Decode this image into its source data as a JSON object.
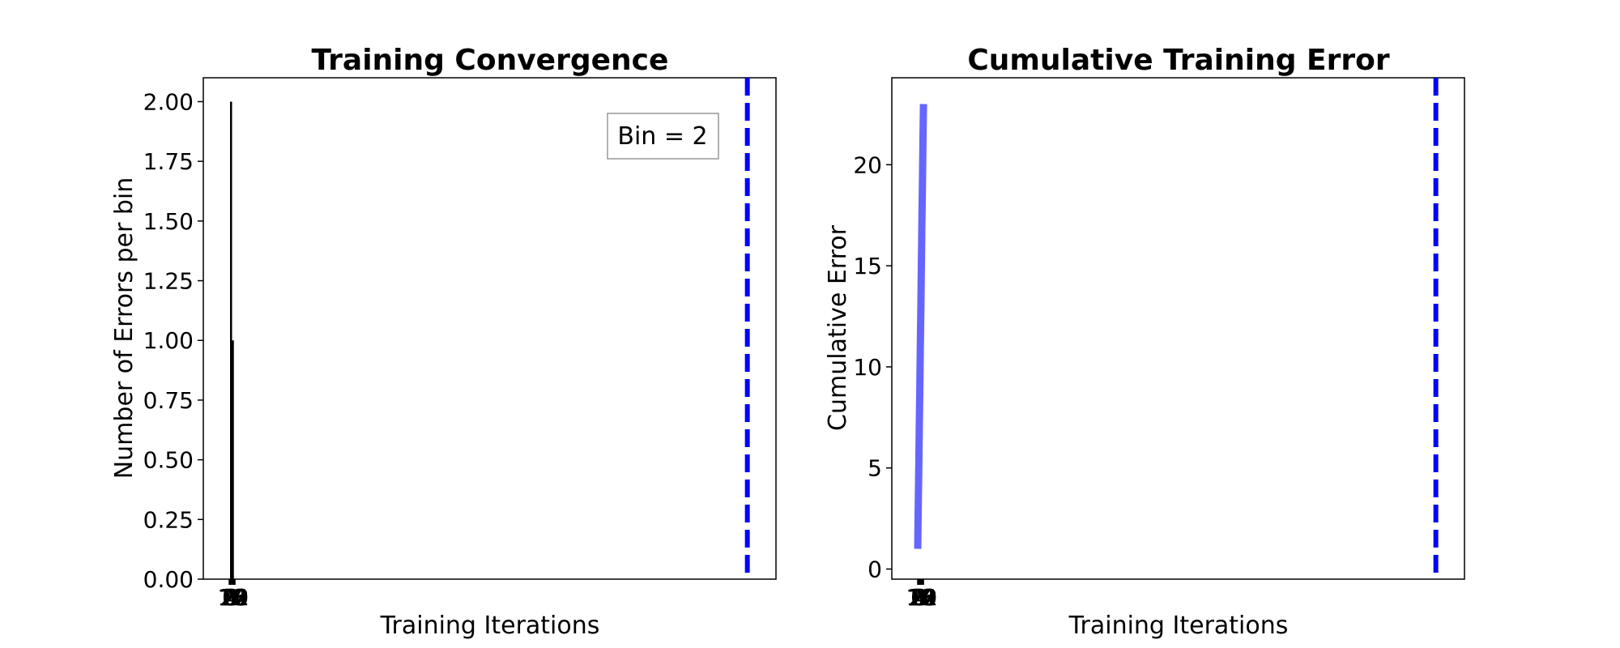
{
  "chart_data": [
    {
      "type": "bar",
      "title": "Training Convergence",
      "xlabel": "Training Iterations",
      "ylabel": "Number of Errors per bin",
      "ylim": [
        0,
        2.1
      ],
      "xlim": [
        0,
        2000
      ],
      "yticks": [
        "0.00",
        "0.25",
        "0.50",
        "0.75",
        "1.00",
        "1.25",
        "1.50",
        "1.75",
        "2.00"
      ],
      "ytick_values": [
        0,
        0.25,
        0.5,
        0.75,
        1.0,
        1.25,
        1.5,
        1.75,
        2.0
      ],
      "xticks": [
        "0",
        "2",
        "4",
        "6",
        "8",
        "10",
        "12",
        "14",
        "16",
        "18",
        "20",
        "22"
      ],
      "xtick_values": [
        0,
        2,
        4,
        6,
        8,
        10,
        12,
        14,
        16,
        18,
        20,
        22
      ],
      "bars": [
        {
          "x": 7,
          "value": 2
        },
        {
          "x": 14,
          "value": 1
        }
      ],
      "legend": "Bin = 2",
      "legend_placement": "top-right",
      "vline": {
        "x": 1900,
        "color": "#0000ff",
        "style": "dashed"
      },
      "bar_color": "#000000",
      "grid": false
    },
    {
      "type": "line",
      "title": "Cumulative Training Error",
      "xlabel": "Training Iterations",
      "ylabel": "Cumulative Error",
      "ylim": [
        -0.5,
        24.3
      ],
      "xlim": [
        0,
        2000
      ],
      "yticks": [
        "0",
        "5",
        "10",
        "15",
        "20"
      ],
      "ytick_values": [
        0,
        5,
        10,
        15,
        20
      ],
      "xticks": [
        "0",
        "2",
        "4",
        "6",
        "8",
        "10",
        "12",
        "14",
        "16",
        "18",
        "20",
        "22"
      ],
      "xtick_values": [
        0,
        2,
        4,
        6,
        8,
        10,
        12,
        14,
        16,
        18,
        20,
        22
      ],
      "x": [
        0,
        2,
        4,
        6,
        8,
        10,
        12,
        14,
        16,
        18,
        20,
        22
      ],
      "values": [
        1,
        3,
        5,
        7,
        9,
        11,
        13,
        15,
        17,
        19,
        21,
        23
      ],
      "line_color": "#6666ff",
      "vline": {
        "x": 1900,
        "color": "#0000ff",
        "style": "dashed"
      },
      "grid": false
    }
  ]
}
